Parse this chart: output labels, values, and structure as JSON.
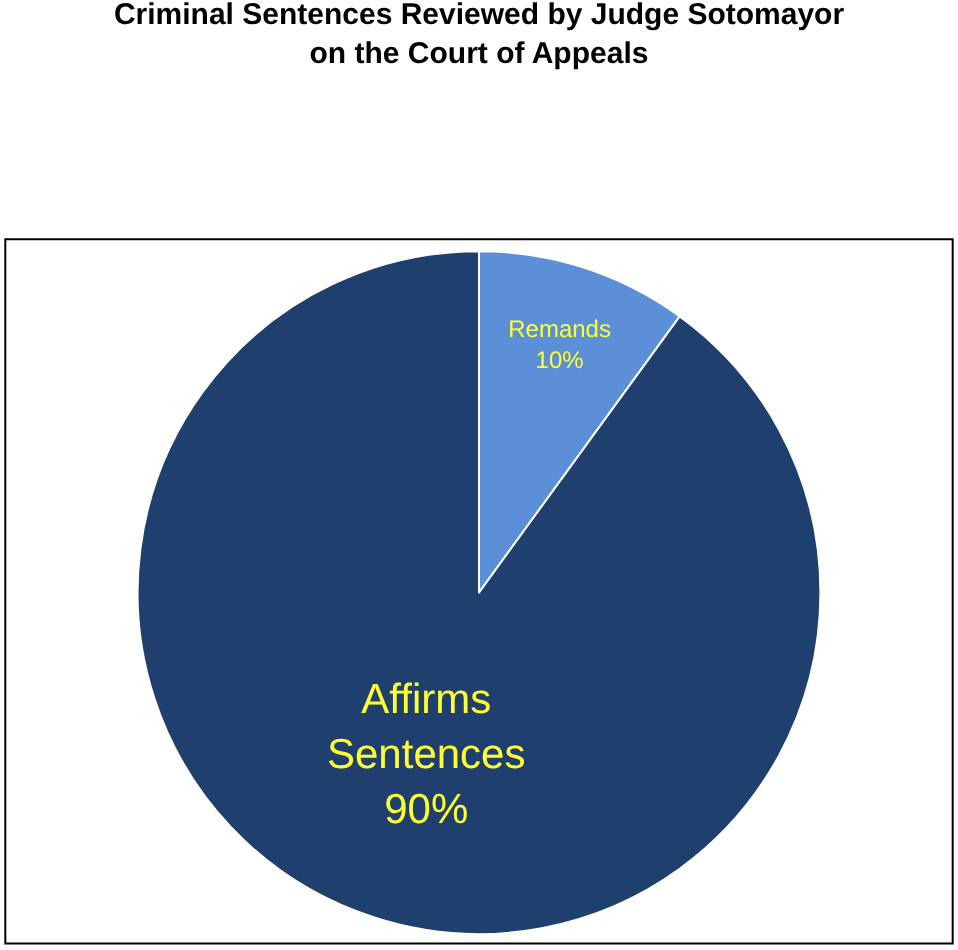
{
  "chart_data": {
    "type": "pie",
    "title": "Criminal Sentences Reviewed by Judge Sotomayor\non the Court of Appeals",
    "categories": [
      "Remands",
      "Affirms\nSentences"
    ],
    "values": [
      10,
      90
    ],
    "colors": [
      "#5b8fd8",
      "#1f3f6e"
    ],
    "value_labels": [
      "10%",
      "90%"
    ],
    "legend": false
  }
}
